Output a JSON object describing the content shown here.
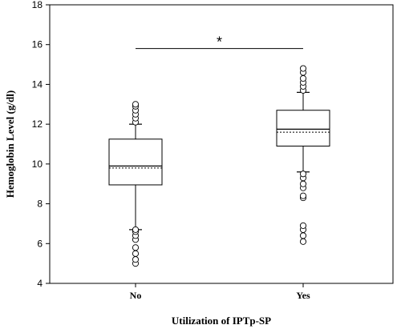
{
  "chart_data": {
    "type": "box",
    "ylabel": "Hemoglobin Level (g/dl)",
    "xlabel": "Utilization of IPTp-SP",
    "ylim": [
      4,
      18
    ],
    "yticks": [
      4,
      6,
      8,
      10,
      12,
      14,
      16,
      18
    ],
    "grid": false,
    "categories": [
      "No",
      "Yes"
    ],
    "boxes": [
      {
        "category": "No",
        "whisker_low": 6.7,
        "q1": 8.95,
        "median": 9.9,
        "mean": 9.8,
        "q3": 11.25,
        "whisker_high": 12.0,
        "outliers": [
          5.0,
          5.2,
          5.5,
          5.8,
          6.2,
          6.4,
          6.6,
          6.7,
          12.1,
          12.3,
          12.5,
          12.7,
          12.9,
          13.0
        ]
      },
      {
        "category": "Yes",
        "whisker_low": 9.6,
        "q1": 10.9,
        "median": 11.75,
        "mean": 11.6,
        "q3": 12.7,
        "whisker_high": 13.6,
        "outliers": [
          6.1,
          6.4,
          6.7,
          6.9,
          8.3,
          8.4,
          8.8,
          9.0,
          9.3,
          9.5,
          13.7,
          13.9,
          14.1,
          14.3,
          14.6,
          14.8
        ]
      }
    ],
    "significance": {
      "label": "*",
      "y": 15.8,
      "from": "No",
      "to": "Yes"
    }
  }
}
